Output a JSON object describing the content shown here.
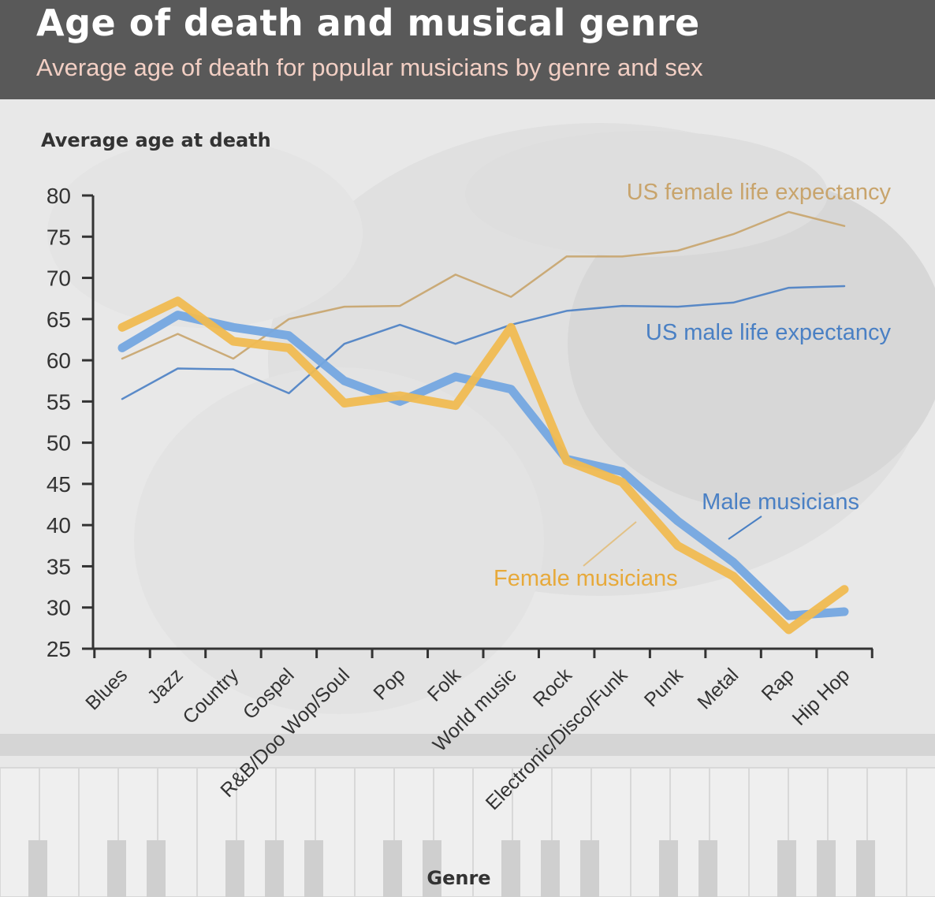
{
  "header": {
    "title": "Age of death and musical genre",
    "subtitle": "Average age of death for popular musicians by genre and sex"
  },
  "colors": {
    "header_bg": "#595959",
    "male": "#74a6e0",
    "female": "#f0ba51",
    "us_male": "#4a80c4",
    "us_female": "#c8a46c",
    "axis": "#333333"
  },
  "chart_data": {
    "type": "line",
    "title": "Age of death and musical genre",
    "subtitle": "Average age of death for popular musicians by genre and sex",
    "xlabel": "Genre",
    "ylabel": "Average age at death",
    "ylim": [
      25,
      80
    ],
    "yticks": [
      80,
      75,
      70,
      65,
      60,
      55,
      50,
      45,
      40,
      35,
      30,
      25
    ],
    "grid": false,
    "categories": [
      "Blues",
      "Jazz",
      "Country",
      "Gospel",
      "R&B/Doo Wop/Soul",
      "Pop",
      "Folk",
      "World music",
      "Rock",
      "Electronic/Disco/Funk",
      "Punk",
      "Metal",
      "Rap",
      "Hip Hop"
    ],
    "series": [
      {
        "name": "US female life expectancy",
        "color": "#c8a46c",
        "style": "thin",
        "values": [
          60.2,
          63.2,
          60.2,
          65.0,
          66.5,
          66.6,
          70.4,
          67.7,
          72.6,
          72.6,
          73.3,
          75.3,
          78.0,
          76.3
        ]
      },
      {
        "name": "US male life expectancy",
        "color": "#4a80c4",
        "style": "thin",
        "values": [
          55.3,
          59.0,
          58.9,
          56.0,
          62.0,
          64.3,
          62.0,
          64.3,
          66.0,
          66.6,
          66.5,
          67.0,
          68.8,
          69.0
        ]
      },
      {
        "name": "Male musicians",
        "color": "#74a6e0",
        "style": "thick",
        "values": [
          61.5,
          65.5,
          64.0,
          63.0,
          57.5,
          55.0,
          58.0,
          56.5,
          48.0,
          46.5,
          40.5,
          35.5,
          29.0,
          29.5
        ]
      },
      {
        "name": "Female musicians",
        "color": "#f0ba51",
        "style": "thick",
        "values": [
          64.0,
          67.2,
          62.3,
          61.5,
          54.8,
          55.7,
          54.5,
          64.0,
          47.8,
          45.2,
          37.5,
          33.8,
          27.3,
          32.2
        ]
      }
    ],
    "annotations": {
      "us_female": "US female life expectancy",
      "us_male": "US male life expectancy",
      "male": "Male musicians",
      "female": "Female musicians"
    }
  }
}
